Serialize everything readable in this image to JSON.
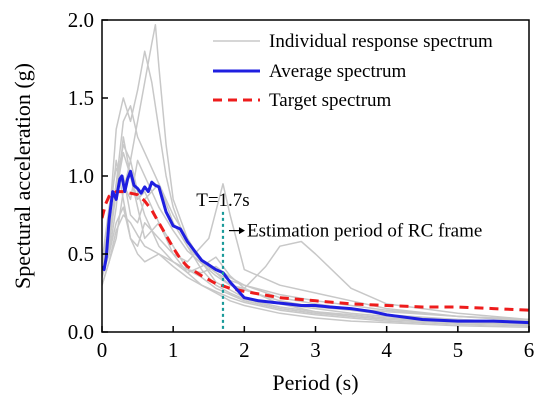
{
  "chart_data": {
    "type": "line",
    "xlabel": "Period (s)",
    "ylabel": "Spectural acceleration (g)",
    "xlim": [
      0,
      6
    ],
    "ylim": [
      0,
      2.0
    ],
    "x_ticks": [
      "0",
      "1",
      "2",
      "3",
      "4",
      "5",
      "6"
    ],
    "y_ticks": [
      "0.0",
      "0.5",
      "1.0",
      "1.5",
      "2.0"
    ],
    "legend_position": "top-right",
    "grid": false,
    "colors": {
      "individual": "#c8c8c8",
      "average": "#1f1fe0",
      "target": "#ee1c1c",
      "marker": "#1a9a9a"
    },
    "legend": [
      {
        "label": "Individual response spectrum",
        "style": "individual"
      },
      {
        "label": "Average spectrum",
        "style": "average"
      },
      {
        "label": "Target spectrum",
        "style": "target"
      }
    ],
    "annotations": {
      "period_marker_x": 1.7,
      "period_label": "T=1.7s",
      "arrow_label": "Estimation period of RC frame"
    },
    "series": [
      {
        "name": "Average spectrum",
        "style": "average",
        "x": [
          0,
          0.03,
          0.06,
          0.1,
          0.15,
          0.2,
          0.25,
          0.28,
          0.32,
          0.36,
          0.4,
          0.45,
          0.5,
          0.55,
          0.6,
          0.65,
          0.7,
          0.75,
          0.8,
          0.85,
          0.9,
          1.0,
          1.1,
          1.2,
          1.3,
          1.4,
          1.5,
          1.6,
          1.7,
          1.8,
          1.9,
          2.0,
          2.2,
          2.4,
          2.6,
          2.8,
          3.0,
          3.2,
          3.5,
          3.8,
          4.0,
          4.5,
          5.0,
          5.5,
          6.0
        ],
        "y": [
          0.42,
          0.4,
          0.48,
          0.72,
          0.9,
          0.85,
          0.98,
          1.0,
          0.9,
          0.98,
          1.03,
          0.94,
          0.92,
          0.89,
          0.93,
          0.9,
          0.96,
          0.94,
          0.93,
          0.85,
          0.77,
          0.68,
          0.66,
          0.58,
          0.52,
          0.46,
          0.43,
          0.4,
          0.38,
          0.32,
          0.27,
          0.22,
          0.2,
          0.19,
          0.18,
          0.17,
          0.17,
          0.16,
          0.15,
          0.13,
          0.11,
          0.08,
          0.07,
          0.07,
          0.06
        ]
      },
      {
        "name": "Target spectrum",
        "style": "target",
        "x": [
          0,
          0.05,
          0.1,
          0.2,
          0.3,
          0.4,
          0.5,
          0.6,
          0.7,
          0.8,
          0.9,
          1.0,
          1.1,
          1.2,
          1.4,
          1.6,
          1.8,
          2.0,
          2.5,
          3.0,
          3.5,
          4.0,
          4.5,
          5.0,
          5.5,
          6.0
        ],
        "y": [
          0.73,
          0.82,
          0.87,
          0.9,
          0.9,
          0.89,
          0.88,
          0.84,
          0.78,
          0.7,
          0.62,
          0.54,
          0.47,
          0.42,
          0.36,
          0.31,
          0.28,
          0.26,
          0.22,
          0.2,
          0.18,
          0.17,
          0.16,
          0.16,
          0.15,
          0.14
        ]
      },
      {
        "style": "individual",
        "x": [
          0,
          0.1,
          0.2,
          0.3,
          0.4,
          0.5,
          0.6,
          0.7,
          0.75,
          0.8,
          0.9,
          1.0,
          1.2,
          1.4,
          1.6,
          1.8,
          2.0,
          2.5,
          3.0,
          3.5,
          4.0,
          5.0,
          6.0
        ],
        "y": [
          0.4,
          0.6,
          0.95,
          1.2,
          1.1,
          1.35,
          1.6,
          1.85,
          1.97,
          1.7,
          1.2,
          0.85,
          0.6,
          0.45,
          0.32,
          0.27,
          0.22,
          0.18,
          0.15,
          0.12,
          0.1,
          0.08,
          0.06
        ]
      },
      {
        "style": "individual",
        "x": [
          0,
          0.1,
          0.2,
          0.3,
          0.4,
          0.5,
          0.6,
          0.7,
          0.8,
          0.9,
          1.0,
          1.2,
          1.4,
          1.6,
          1.8,
          2.0,
          2.5,
          3.0,
          3.5,
          4.0,
          5.0,
          6.0
        ],
        "y": [
          0.35,
          0.7,
          1.3,
          1.5,
          1.35,
          1.55,
          1.8,
          1.6,
          1.3,
          1.0,
          0.8,
          0.55,
          0.4,
          0.3,
          0.25,
          0.21,
          0.16,
          0.13,
          0.11,
          0.09,
          0.07,
          0.05
        ]
      },
      {
        "style": "individual",
        "x": [
          0,
          0.1,
          0.2,
          0.3,
          0.4,
          0.5,
          0.6,
          0.8,
          1.0,
          1.2,
          1.4,
          1.6,
          1.8,
          2.0,
          2.3,
          2.5,
          2.8,
          3.0,
          3.5,
          4.0,
          5.0,
          6.0
        ],
        "y": [
          0.5,
          0.65,
          0.9,
          1.0,
          0.75,
          0.7,
          0.85,
          0.95,
          0.75,
          0.6,
          0.45,
          0.38,
          0.3,
          0.28,
          0.42,
          0.55,
          0.58,
          0.5,
          0.28,
          0.18,
          0.12,
          0.08
        ]
      },
      {
        "style": "individual",
        "x": [
          0,
          0.1,
          0.2,
          0.3,
          0.4,
          0.5,
          0.6,
          0.8,
          1.0,
          1.2,
          1.5,
          1.7,
          1.8,
          2.0,
          2.5,
          3.0,
          3.5,
          4.0,
          5.0,
          6.0
        ],
        "y": [
          0.45,
          0.5,
          0.8,
          1.25,
          1.0,
          0.85,
          0.9,
          0.7,
          0.5,
          0.45,
          0.6,
          0.95,
          0.75,
          0.4,
          0.3,
          0.25,
          0.2,
          0.15,
          0.1,
          0.07
        ]
      },
      {
        "style": "individual",
        "x": [
          0,
          0.1,
          0.2,
          0.3,
          0.4,
          0.5,
          0.6,
          0.8,
          1.0,
          1.2,
          1.4,
          1.6,
          1.8,
          2.0,
          2.5,
          3.0,
          3.5,
          4.0,
          5.0,
          6.0
        ],
        "y": [
          0.3,
          0.45,
          0.6,
          0.9,
          1.1,
          0.9,
          0.75,
          0.55,
          0.45,
          0.4,
          0.35,
          0.28,
          0.24,
          0.2,
          0.15,
          0.12,
          0.1,
          0.08,
          0.06,
          0.05
        ]
      },
      {
        "style": "individual",
        "x": [
          0,
          0.1,
          0.2,
          0.3,
          0.4,
          0.5,
          0.6,
          0.8,
          1.0,
          1.2,
          1.4,
          1.6,
          1.8,
          2.0,
          2.5,
          3.0,
          3.5,
          4.0,
          5.0,
          6.0
        ],
        "y": [
          0.4,
          0.7,
          1.1,
          0.85,
          0.6,
          0.55,
          0.7,
          0.6,
          0.5,
          0.38,
          0.3,
          0.25,
          0.2,
          0.17,
          0.12,
          0.09,
          0.07,
          0.06,
          0.04,
          0.03
        ]
      },
      {
        "style": "individual",
        "x": [
          0,
          0.1,
          0.2,
          0.3,
          0.4,
          0.5,
          0.6,
          0.8,
          1.0,
          1.2,
          1.4,
          1.6,
          1.8,
          2.0,
          2.5,
          3.0,
          3.5,
          4.0,
          5.0,
          6.0
        ],
        "y": [
          0.38,
          0.55,
          0.9,
          1.15,
          1.0,
          0.8,
          0.6,
          0.7,
          0.55,
          0.4,
          0.38,
          0.42,
          0.35,
          0.3,
          0.22,
          0.18,
          0.15,
          0.13,
          0.1,
          0.08
        ]
      },
      {
        "style": "individual",
        "x": [
          0,
          0.1,
          0.2,
          0.3,
          0.4,
          0.5,
          0.6,
          0.8,
          1.0,
          1.2,
          1.4,
          1.6,
          1.8,
          2.0,
          2.5,
          3.0,
          3.5,
          4.0,
          5.0,
          6.0
        ],
        "y": [
          0.45,
          0.8,
          1.05,
          0.95,
          0.85,
          1.1,
          1.0,
          0.8,
          0.65,
          0.52,
          0.44,
          0.36,
          0.3,
          0.27,
          0.2,
          0.16,
          0.14,
          0.11,
          0.08,
          0.06
        ]
      },
      {
        "style": "individual",
        "x": [
          0,
          0.1,
          0.2,
          0.3,
          0.4,
          0.5,
          0.6,
          0.8,
          1.0,
          1.2,
          1.4,
          1.6,
          1.8,
          2.0,
          2.5,
          3.0,
          3.5,
          4.0,
          5.0,
          6.0
        ],
        "y": [
          0.35,
          0.5,
          0.7,
          0.8,
          0.6,
          0.5,
          0.45,
          0.5,
          0.42,
          0.35,
          0.3,
          0.26,
          0.22,
          0.19,
          0.14,
          0.11,
          0.09,
          0.07,
          0.05,
          0.04
        ]
      },
      {
        "style": "individual",
        "x": [
          0,
          0.1,
          0.2,
          0.3,
          0.4,
          0.5,
          0.6,
          0.8,
          1.0,
          1.2,
          1.4,
          1.6,
          1.8,
          2.0,
          2.5,
          3.0,
          3.5,
          4.0,
          5.0,
          6.0
        ],
        "y": [
          0.42,
          0.6,
          0.95,
          1.35,
          1.45,
          1.25,
          1.15,
          0.95,
          0.7,
          0.55,
          0.45,
          0.38,
          0.33,
          0.3,
          0.24,
          0.2,
          0.17,
          0.14,
          0.1,
          0.08
        ]
      },
      {
        "style": "individual",
        "x": [
          0,
          0.1,
          0.2,
          0.3,
          0.4,
          0.5,
          0.6,
          0.8,
          1.0,
          1.2,
          1.4,
          1.6,
          1.8,
          2.0,
          2.5,
          3.0,
          3.5,
          4.0,
          5.0,
          6.0
        ],
        "y": [
          0.3,
          0.45,
          0.65,
          0.75,
          0.7,
          0.62,
          0.55,
          0.5,
          0.45,
          0.38,
          0.42,
          0.48,
          0.36,
          0.28,
          0.18,
          0.13,
          0.1,
          0.08,
          0.06,
          0.05
        ]
      }
    ]
  }
}
